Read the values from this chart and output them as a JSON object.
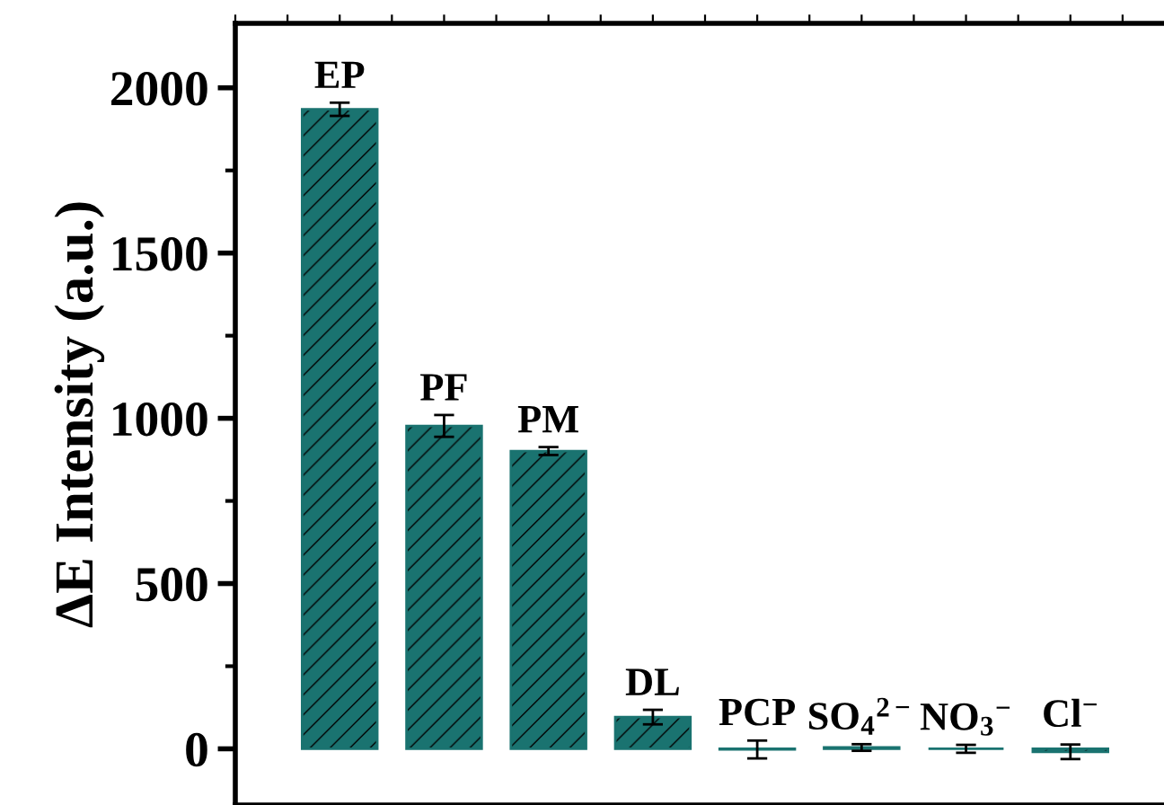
{
  "chart_data": {
    "type": "bar",
    "ylabel": "ΔE Intensity (a.u.)",
    "categories": [
      "EP",
      "PF",
      "PM",
      "DL",
      "PCP",
      "SO$_{4}$$^{2−}$",
      "NO$_{3}$$^{−}$",
      "Cl$^{−}$"
    ],
    "values": [
      1935,
      977,
      901,
      96,
      -2,
      4,
      0,
      -9
    ],
    "errors": [
      20,
      33,
      12,
      22,
      27,
      10,
      12,
      22
    ],
    "color": "#1a7370",
    "ylim": [
      -170,
      2195
    ],
    "yticks": [
      0,
      500,
      1000,
      1500,
      2000
    ],
    "tick_labels": "y",
    "grid": false
  }
}
